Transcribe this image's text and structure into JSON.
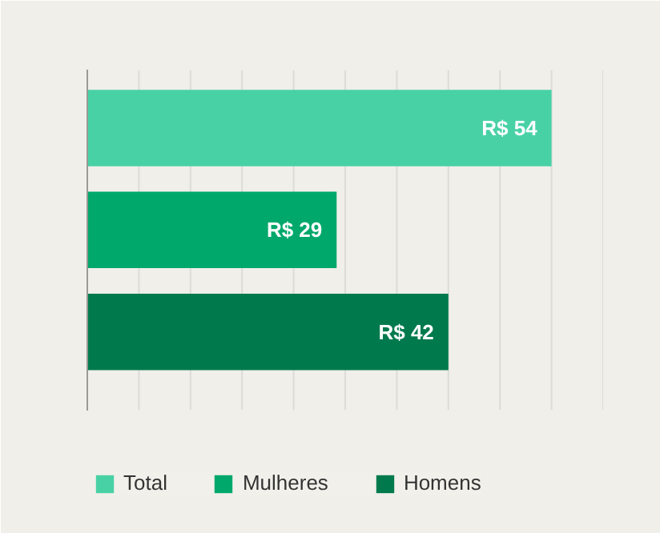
{
  "chart_data": {
    "type": "bar",
    "orientation": "horizontal",
    "categories": [
      null
    ],
    "series": [
      {
        "name": "Total",
        "color": "#48d1a5",
        "values": [
          54
        ],
        "value_labels": [
          "R$ 54"
        ]
      },
      {
        "name": "Mulheres",
        "color": "#00a86b",
        "values": [
          29
        ],
        "value_labels": [
          "R$ 29"
        ]
      },
      {
        "name": "Homens",
        "color": "#007a4d",
        "values": [
          42
        ],
        "value_labels": [
          "R$ 42"
        ]
      }
    ],
    "xlim": [
      0,
      60
    ],
    "xticks": [
      {
        "value": 0,
        "label": null
      },
      {
        "value": 6,
        "label": null
      },
      {
        "value": 12,
        "label": null
      },
      {
        "value": 18,
        "label": null
      },
      {
        "value": 24,
        "label": null
      },
      {
        "value": 30,
        "label": null
      },
      {
        "value": 36,
        "label": null
      },
      {
        "value": 42,
        "label": null
      },
      {
        "value": 48,
        "label": null
      },
      {
        "value": 54,
        "label": null
      },
      {
        "value": 60,
        "label": null
      }
    ],
    "tick_labels": false,
    "grid": "x",
    "legend": "bottom"
  }
}
